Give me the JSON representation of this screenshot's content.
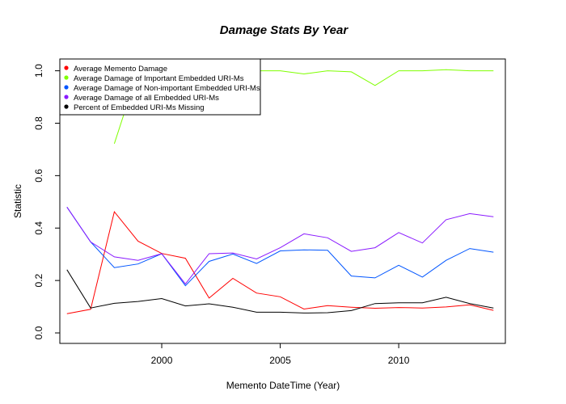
{
  "chart_data": {
    "type": "line",
    "title": "Damage Stats By Year",
    "xlabel": "Memento DateTime (Year)",
    "ylabel": "Statistic",
    "xlim": [
      1995.7,
      2014.5
    ],
    "ylim": [
      -0.04,
      1.045
    ],
    "x_ticks": [
      2000,
      2005,
      2010
    ],
    "y_ticks": [
      0.0,
      0.2,
      0.4,
      0.6,
      0.8,
      1.0
    ],
    "x_tick_labels": [
      "2000",
      "2005",
      "2010"
    ],
    "y_tick_labels": [
      "0.0",
      "0.2",
      "0.4",
      "0.6",
      "0.8",
      "1.0"
    ],
    "grid": false,
    "legend_position": "top-left",
    "series": [
      {
        "name": "Average Memento Damage",
        "color": "#ff0000",
        "points": [
          [
            1996,
            0.073
          ],
          [
            1997,
            0.09
          ],
          [
            1998,
            0.462
          ],
          [
            1999,
            0.35
          ],
          [
            2000,
            0.303
          ],
          [
            2001,
            0.285
          ],
          [
            2002,
            0.133
          ],
          [
            2003,
            0.208
          ],
          [
            2004,
            0.152
          ],
          [
            2005,
            0.138
          ],
          [
            2006,
            0.091
          ],
          [
            2007,
            0.104
          ],
          [
            2008,
            0.098
          ],
          [
            2009,
            0.094
          ],
          [
            2010,
            0.097
          ],
          [
            2011,
            0.095
          ],
          [
            2012,
            0.099
          ],
          [
            2013,
            0.107
          ],
          [
            2014,
            0.086
          ]
        ]
      },
      {
        "name": "Average Damage of Important Embedded URI-Ms",
        "color": "#7fff00",
        "points": [
          [
            1998,
            0.722
          ],
          [
            1999,
            1.0
          ],
          [
            2000,
            1.0
          ],
          [
            2001,
            1.0
          ],
          [
            2002,
            1.0
          ],
          [
            2003,
            1.0
          ],
          [
            2004,
            1.0
          ],
          [
            2005,
            1.0
          ],
          [
            2006,
            0.988
          ],
          [
            2007,
            1.0
          ],
          [
            2008,
            0.996
          ],
          [
            2009,
            0.944
          ],
          [
            2010,
            1.0
          ],
          [
            2011,
            1.0
          ],
          [
            2012,
            1.004
          ],
          [
            2013,
            1.0
          ],
          [
            2014,
            1.0
          ]
        ]
      },
      {
        "name": "Average Damage of Non-important Embedded URI-Ms",
        "color": "#0055ff",
        "points": [
          [
            1996,
            0.48
          ],
          [
            1997,
            0.347
          ],
          [
            1998,
            0.249
          ],
          [
            1999,
            0.263
          ],
          [
            2000,
            0.302
          ],
          [
            2001,
            0.18
          ],
          [
            2002,
            0.273
          ],
          [
            2003,
            0.301
          ],
          [
            2004,
            0.265
          ],
          [
            2005,
            0.313
          ],
          [
            2006,
            0.317
          ],
          [
            2007,
            0.315
          ],
          [
            2008,
            0.217
          ],
          [
            2009,
            0.21
          ],
          [
            2010,
            0.258
          ],
          [
            2011,
            0.213
          ],
          [
            2012,
            0.277
          ],
          [
            2013,
            0.322
          ],
          [
            2014,
            0.308
          ]
        ]
      },
      {
        "name": "Average Damage of all Embedded URI-Ms",
        "color": "#8a1aff",
        "points": [
          [
            1996,
            0.48
          ],
          [
            1997,
            0.347
          ],
          [
            1998,
            0.29
          ],
          [
            1999,
            0.277
          ],
          [
            2000,
            0.302
          ],
          [
            2001,
            0.187
          ],
          [
            2002,
            0.302
          ],
          [
            2003,
            0.305
          ],
          [
            2004,
            0.282
          ],
          [
            2005,
            0.325
          ],
          [
            2006,
            0.378
          ],
          [
            2007,
            0.363
          ],
          [
            2008,
            0.311
          ],
          [
            2009,
            0.325
          ],
          [
            2010,
            0.383
          ],
          [
            2011,
            0.343
          ],
          [
            2012,
            0.432
          ],
          [
            2013,
            0.455
          ],
          [
            2014,
            0.443
          ]
        ]
      },
      {
        "name": "Percent of Embedded URI-Ms Missing",
        "color": "#000000",
        "points": [
          [
            1996,
            0.241
          ],
          [
            1997,
            0.095
          ],
          [
            1998,
            0.113
          ],
          [
            1999,
            0.12
          ],
          [
            2000,
            0.131
          ],
          [
            2001,
            0.103
          ],
          [
            2002,
            0.111
          ],
          [
            2003,
            0.098
          ],
          [
            2004,
            0.079
          ],
          [
            2005,
            0.079
          ],
          [
            2006,
            0.076
          ],
          [
            2007,
            0.077
          ],
          [
            2008,
            0.085
          ],
          [
            2009,
            0.112
          ],
          [
            2010,
            0.115
          ],
          [
            2011,
            0.115
          ],
          [
            2012,
            0.136
          ],
          [
            2013,
            0.112
          ],
          [
            2014,
            0.095
          ]
        ]
      }
    ]
  }
}
